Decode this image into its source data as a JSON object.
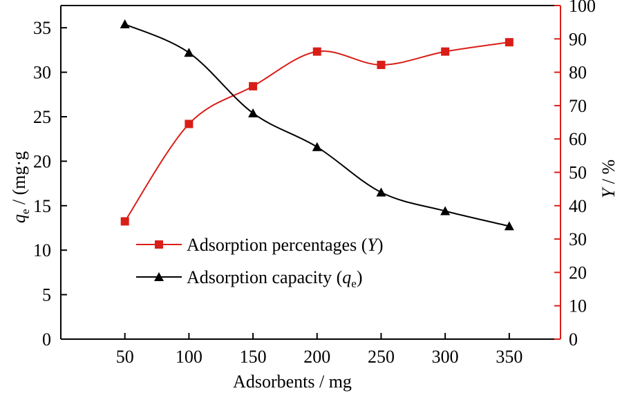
{
  "chart_data": {
    "type": "line",
    "x": [
      50,
      100,
      150,
      200,
      250,
      300,
      350
    ],
    "xlabel": "Adsorbents / mg",
    "ylabel_left": {
      "symbol": "q",
      "subscript": "e",
      "rest": " / (mg·g"
    },
    "ylabel_right": {
      "symbol": "Y",
      "rest": " / %"
    },
    "xlim": [
      0,
      390
    ],
    "ylim_left": [
      0,
      37.5
    ],
    "ylim_right": [
      0,
      100
    ],
    "x_ticks": [
      50,
      100,
      150,
      200,
      250,
      300,
      350
    ],
    "y_left_ticks": [
      0,
      5,
      10,
      15,
      20,
      25,
      30,
      35
    ],
    "y_right_ticks": [
      0,
      10,
      20,
      30,
      40,
      50,
      60,
      70,
      80,
      90,
      100
    ],
    "grid": false,
    "legend_position": "center-left",
    "series": [
      {
        "name": "Adsorption percentages (Y)",
        "label_parts": {
          "text": "Adsorption percentages (",
          "symbol": "Y",
          "close": ")"
        },
        "axis": "right",
        "color": "#d91e18",
        "marker": "square",
        "values": [
          35.3,
          64.5,
          75.8,
          86.2,
          82.2,
          86.2,
          89.0
        ]
      },
      {
        "name": "Adsorption capacity (qe)",
        "label_parts": {
          "text": "Adsorption capacity (",
          "symbol": "q",
          "subscript": "e",
          "close": ")"
        },
        "axis": "left",
        "color": "#000000",
        "marker": "triangle",
        "values": [
          35.4,
          32.2,
          25.4,
          21.6,
          16.5,
          14.4,
          12.7
        ]
      }
    ]
  }
}
